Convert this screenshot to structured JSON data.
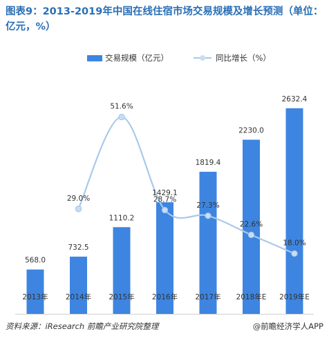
{
  "title": "图表9：2013-2019年中国在线住宿市场交易规模及增长预测（单位：亿元，%）",
  "legend": {
    "bar_label": "交易规模（亿元）",
    "line_label": "同比增长（%）"
  },
  "source": "资料来源：iResearch  前瞻产业研究院整理",
  "brand": "@前瞻经济学人APP",
  "colors": {
    "bar": "#3d85e0",
    "line": "#a9c9ea",
    "title": "#2a6fb6"
  },
  "chart_data": {
    "type": "bar",
    "categories": [
      "2013年",
      "2014年",
      "2015年",
      "2016年",
      "2017年",
      "2018年E",
      "2019年E"
    ],
    "series": [
      {
        "name": "交易规模（亿元）",
        "type": "bar",
        "values": [
          568.0,
          732.5,
          1110.2,
          1429.1,
          1819.4,
          2230.0,
          2632.4
        ]
      },
      {
        "name": "同比增长（%）",
        "type": "line",
        "values": [
          null,
          29.0,
          51.6,
          28.7,
          27.3,
          22.6,
          18.0
        ]
      }
    ],
    "bar_labels": [
      "568.0",
      "732.5",
      "1110.2",
      "1429.1",
      "1819.4",
      "2230.0",
      "2632.4"
    ],
    "line_labels": [
      "",
      "29.0%",
      "51.6%",
      "28.7%",
      "27.3%",
      "22.6%",
      "18.0%"
    ],
    "ylim_bars": [
      0,
      2800
    ],
    "grid": false,
    "legend_position": "top"
  }
}
